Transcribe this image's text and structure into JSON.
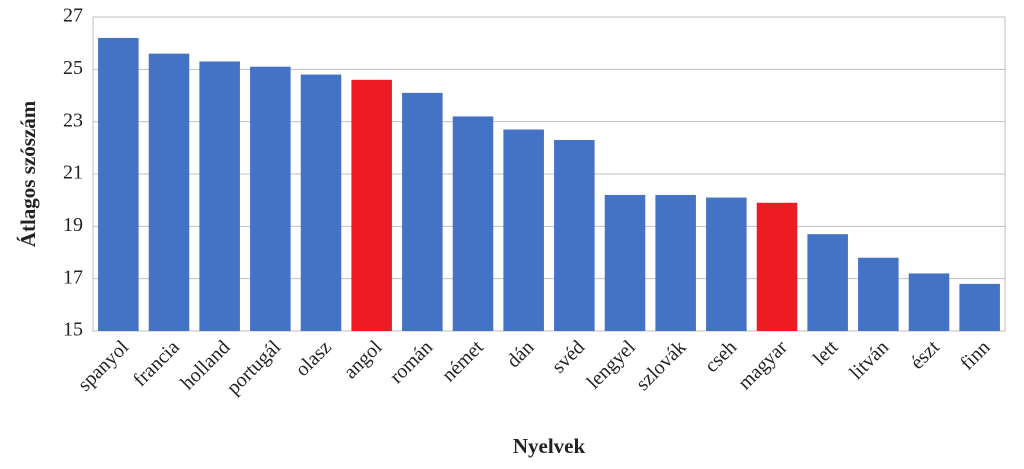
{
  "chart_data": {
    "type": "bar",
    "x_label": "Nyelvek",
    "y_label": "Átlagos szószám",
    "categories": [
      "spanyol",
      "francia",
      "holland",
      "portugál",
      "olasz",
      "angol",
      "román",
      "német",
      "dán",
      "svéd",
      "lengyel",
      "szlovák",
      "cseh",
      "magyar",
      "lett",
      "litván",
      "észt",
      "finn"
    ],
    "values": [
      26.2,
      25.6,
      25.3,
      25.1,
      24.8,
      24.6,
      24.1,
      23.2,
      22.7,
      22.3,
      20.2,
      20.2,
      20.1,
      19.9,
      18.7,
      17.8,
      17.2,
      16.8
    ],
    "colors": [
      "#4472c4",
      "#4472c4",
      "#4472c4",
      "#4472c4",
      "#4472c4",
      "#ed1c24",
      "#4472c4",
      "#4472c4",
      "#4472c4",
      "#4472c4",
      "#4472c4",
      "#4472c4",
      "#4472c4",
      "#ed1c24",
      "#4472c4",
      "#4472c4",
      "#4472c4",
      "#4472c4"
    ],
    "ylim": [
      15,
      27
    ],
    "yticks": [
      15,
      17,
      19,
      21,
      23,
      25,
      27
    ],
    "grid": true
  }
}
